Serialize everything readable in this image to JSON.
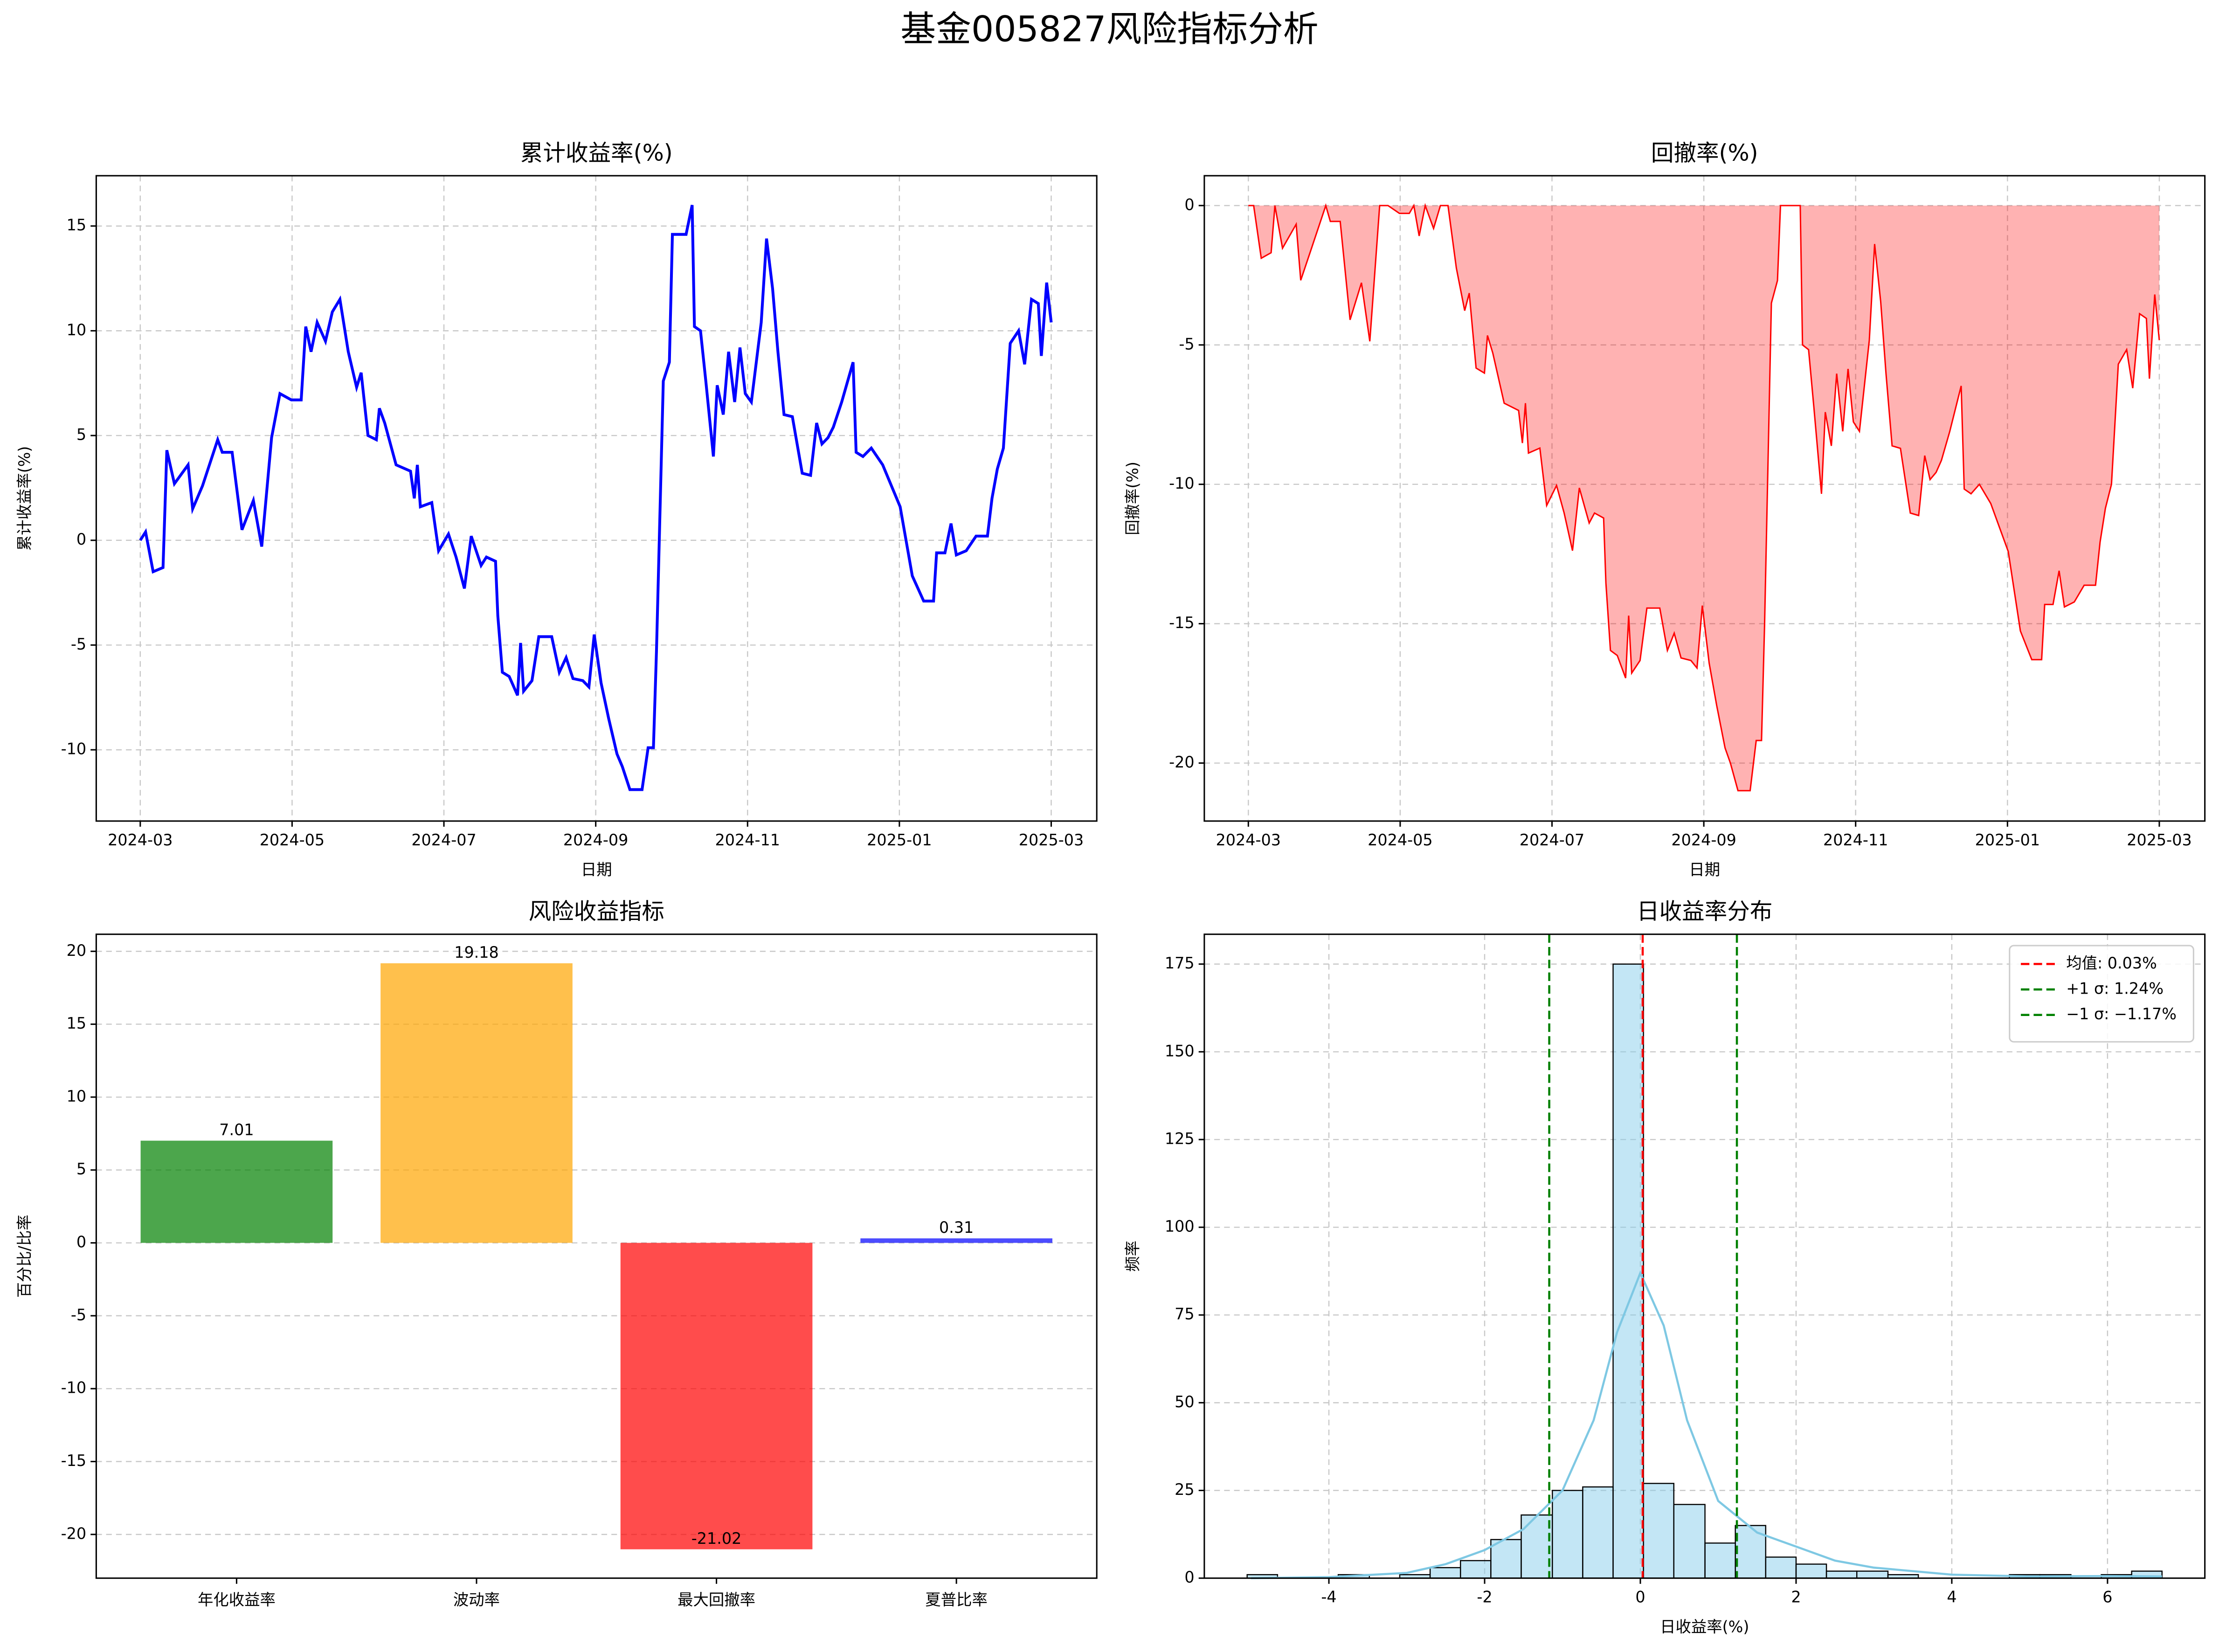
{
  "title": "基金005827风险指标分析",
  "chart_data": [
    {
      "type": "line",
      "title": "累计收益率(%)",
      "xlabel": "日期",
      "ylabel": "累计收益率(%)",
      "color": "blue",
      "grid": "both",
      "xlim": [
        -0.58,
        12.6
      ],
      "xticks": [
        {
          "value": 0,
          "label": "2024-03"
        },
        {
          "value": 2,
          "label": "2024-05"
        },
        {
          "value": 4,
          "label": "2024-07"
        },
        {
          "value": 6,
          "label": "2024-09"
        },
        {
          "value": 8,
          "label": "2024-11"
        },
        {
          "value": 10,
          "label": "2025-01"
        },
        {
          "value": 12,
          "label": "2025-03"
        }
      ],
      "ylim": [
        -13.4,
        17.4
      ],
      "yticks": [
        -10,
        -5,
        0,
        5,
        10,
        15
      ],
      "x": [
        0,
        0.07,
        0.17,
        0.3,
        0.35,
        0.45,
        0.63,
        0.69,
        0.82,
        1.02,
        1.08,
        1.21,
        1.34,
        1.49,
        1.6,
        1.73,
        1.84,
        1.99,
        2.12,
        2.18,
        2.25,
        2.33,
        2.44,
        2.53,
        2.63,
        2.74,
        2.85,
        2.91,
        3.0,
        3.11,
        3.15,
        3.22,
        3.37,
        3.56,
        3.61,
        3.65,
        3.69,
        3.84,
        3.93,
        4.06,
        4.16,
        4.27,
        4.36,
        4.49,
        4.56,
        4.68,
        4.71,
        4.77,
        4.86,
        4.97,
        5.01,
        5.05,
        5.16,
        5.25,
        5.42,
        5.52,
        5.61,
        5.7,
        5.83,
        5.91,
        5.98,
        6.07,
        6.17,
        6.28,
        6.35,
        6.45,
        6.61,
        6.69,
        6.76,
        6.8,
        6.89,
        6.97,
        7.01,
        7.19,
        7.27,
        7.3,
        7.38,
        7.45,
        7.55,
        7.6,
        7.68,
        7.75,
        7.83,
        7.9,
        7.97,
        8.05,
        8.18,
        8.25,
        8.33,
        8.4,
        8.48,
        8.59,
        8.72,
        8.83,
        8.91,
        8.98,
        9.06,
        9.13,
        9.24,
        9.39,
        9.43,
        9.52,
        9.63,
        9.78,
        10.01,
        10.17,
        10.32,
        10.45,
        10.49,
        10.6,
        10.68,
        10.75,
        10.88,
        11.01,
        11.16,
        11.22,
        11.29,
        11.37,
        11.46,
        11.57,
        11.65,
        11.74,
        11.83,
        11.87,
        11.94,
        12.0
      ],
      "values": [
        0,
        0.4,
        -1.5,
        -1.3,
        4.3,
        2.7,
        3.6,
        1.5,
        2.6,
        4.8,
        4.2,
        4.2,
        0.5,
        1.9,
        -0.3,
        4.9,
        7.0,
        6.7,
        6.7,
        10.2,
        9.0,
        10.4,
        9.5,
        10.9,
        11.5,
        9.0,
        7.3,
        8.0,
        5.0,
        4.8,
        6.3,
        5.6,
        3.6,
        3.3,
        2.0,
        3.6,
        1.6,
        1.8,
        -0.5,
        0.3,
        -0.8,
        -2.3,
        0.2,
        -1.2,
        -0.8,
        -1.0,
        -3.6,
        -6.3,
        -6.5,
        -7.4,
        -4.9,
        -7.2,
        -6.7,
        -4.6,
        -4.6,
        -6.3,
        -5.6,
        -6.6,
        -6.7,
        -7.0,
        -4.5,
        -6.8,
        -8.5,
        -10.2,
        -10.8,
        -11.9,
        -11.9,
        -9.9,
        -9.9,
        -5.3,
        7.6,
        8.5,
        14.6,
        14.6,
        16.0,
        10.2,
        10.0,
        7.6,
        4.0,
        7.4,
        6.0,
        9.0,
        6.6,
        9.2,
        7.0,
        6.6,
        10.4,
        14.4,
        12.0,
        9.0,
        6.0,
        5.9,
        3.2,
        3.1,
        5.6,
        4.6,
        4.9,
        5.4,
        6.6,
        8.5,
        4.2,
        4.0,
        4.4,
        3.6,
        1.6,
        -1.7,
        -2.9,
        -2.9,
        -0.6,
        -0.6,
        0.8,
        -0.7,
        -0.5,
        0.2,
        0.2,
        2.0,
        3.4,
        4.4,
        9.4,
        10.0,
        8.4,
        11.5,
        11.3,
        8.8,
        12.3,
        10.4
      ]
    },
    {
      "type": "area",
      "title": "回撤率(%)",
      "xlabel": "日期",
      "ylabel": "回撤率(%)",
      "color": "red",
      "fill_alpha": 0.3,
      "grid": "both",
      "xlim": [
        -0.58,
        12.6
      ],
      "xticks": [
        {
          "value": 0,
          "label": "2024-03"
        },
        {
          "value": 2,
          "label": "2024-05"
        },
        {
          "value": 4,
          "label": "2024-07"
        },
        {
          "value": 6,
          "label": "2024-09"
        },
        {
          "value": 8,
          "label": "2024-11"
        },
        {
          "value": 10,
          "label": "2025-01"
        },
        {
          "value": 12,
          "label": "2025-03"
        }
      ],
      "ylim": [
        -22.08,
        1.07
      ],
      "yticks": [
        -20,
        -15,
        -10,
        -5,
        0
      ],
      "x": [
        0,
        0.07,
        0.17,
        0.3,
        0.35,
        0.45,
        0.63,
        0.69,
        0.82,
        1.02,
        1.08,
        1.21,
        1.34,
        1.49,
        1.6,
        1.73,
        1.84,
        1.99,
        2.12,
        2.18,
        2.25,
        2.33,
        2.44,
        2.53,
        2.63,
        2.74,
        2.85,
        2.91,
        3.0,
        3.11,
        3.15,
        3.22,
        3.37,
        3.56,
        3.61,
        3.65,
        3.69,
        3.84,
        3.93,
        4.06,
        4.16,
        4.27,
        4.36,
        4.49,
        4.56,
        4.68,
        4.71,
        4.77,
        4.86,
        4.97,
        5.01,
        5.05,
        5.16,
        5.25,
        5.42,
        5.52,
        5.61,
        5.7,
        5.83,
        5.91,
        5.98,
        6.07,
        6.17,
        6.28,
        6.35,
        6.45,
        6.61,
        6.69,
        6.76,
        6.8,
        6.89,
        6.97,
        7.01,
        7.19,
        7.27,
        7.3,
        7.38,
        7.45,
        7.55,
        7.6,
        7.68,
        7.75,
        7.83,
        7.9,
        7.97,
        8.05,
        8.18,
        8.25,
        8.33,
        8.4,
        8.48,
        8.59,
        8.72,
        8.83,
        8.91,
        8.98,
        9.06,
        9.13,
        9.24,
        9.39,
        9.43,
        9.52,
        9.63,
        9.78,
        10.01,
        10.17,
        10.32,
        10.45,
        10.49,
        10.6,
        10.68,
        10.75,
        10.88,
        11.01,
        11.16,
        11.22,
        11.29,
        11.37,
        11.46,
        11.57,
        11.65,
        11.74,
        11.83,
        11.87,
        11.94,
        12.0
      ],
      "values": [
        0,
        0,
        -1.89,
        -1.69,
        0,
        -1.53,
        -0.67,
        -2.68,
        -1.63,
        0,
        -0.57,
        -0.57,
        -4.1,
        -2.77,
        -4.87,
        0,
        0,
        -0.28,
        -0.28,
        0,
        -1.09,
        0,
        -0.82,
        0,
        0,
        -2.24,
        -3.77,
        -3.14,
        -5.83,
        -6.01,
        -4.66,
        -5.29,
        -7.09,
        -7.35,
        -8.52,
        -7.09,
        -8.88,
        -8.7,
        -10.76,
        -10.04,
        -11.03,
        -12.38,
        -10.13,
        -11.39,
        -11.03,
        -11.21,
        -13.54,
        -15.96,
        -16.14,
        -16.95,
        -14.71,
        -16.77,
        -16.32,
        -14.44,
        -14.44,
        -15.96,
        -15.34,
        -16.23,
        -16.32,
        -16.59,
        -14.35,
        -16.41,
        -17.94,
        -19.46,
        -20.0,
        -20.99,
        -20.99,
        -19.19,
        -19.19,
        -15.07,
        -3.5,
        -2.69,
        0,
        0,
        0,
        -5.0,
        -5.17,
        -7.24,
        -10.34,
        -7.41,
        -8.62,
        -6.03,
        -8.1,
        -5.86,
        -7.76,
        -8.1,
        -4.83,
        -1.38,
        -3.45,
        -6.03,
        -8.62,
        -8.71,
        -11.03,
        -11.12,
        -8.97,
        -9.83,
        -9.57,
        -9.14,
        -8.1,
        -6.47,
        -10.17,
        -10.34,
        -10.0,
        -10.69,
        -12.41,
        -15.26,
        -16.29,
        -16.29,
        -14.31,
        -14.31,
        -13.1,
        -14.4,
        -14.22,
        -13.62,
        -13.62,
        -12.07,
        -10.86,
        -10.0,
        -5.69,
        -5.17,
        -6.55,
        -3.88,
        -4.05,
        -6.21,
        -3.19,
        -4.83
      ]
    },
    {
      "type": "bar",
      "title": "风险收益指标",
      "ylabel": "百分比/比率",
      "grid": "y",
      "categories": [
        "年化收益率",
        "波动率",
        "最大回撤率",
        "夏普比率"
      ],
      "values": [
        7.01,
        19.18,
        -21.02,
        0.31
      ],
      "colors": [
        "green",
        "orange",
        "red",
        "blue"
      ],
      "alpha": 0.7,
      "ylim": [
        -23,
        21.17
      ],
      "yticks": [
        -20,
        -15,
        -10,
        -5,
        0,
        5,
        10,
        15,
        20
      ]
    },
    {
      "type": "histogram",
      "title": "日收益率分布",
      "xlabel": "日收益率(%)",
      "ylabel": "频率",
      "grid": "both",
      "color": "skyblue",
      "alpha": 0.5,
      "edgecolor": "black",
      "bins": [
        -5.05,
        -4.66,
        -4.27,
        -3.88,
        -3.48,
        -3.09,
        -2.7,
        -2.31,
        -1.92,
        -1.53,
        -1.13,
        -0.74,
        -0.35,
        0.04,
        0.43,
        0.83,
        1.22,
        1.61,
        2.0,
        2.39,
        2.78,
        3.18,
        3.57,
        3.96,
        4.35,
        4.74,
        5.13,
        5.53,
        5.92,
        6.31,
        6.7
      ],
      "values": [
        1,
        0,
        0,
        1,
        0,
        1,
        3,
        5,
        11,
        18,
        25,
        26,
        175,
        27,
        21,
        10,
        15,
        6,
        4,
        2,
        2,
        1,
        0,
        0,
        0,
        1,
        1,
        0,
        1,
        2
      ],
      "curve": {
        "color": "#7ec8e3",
        "x": [
          -5,
          -4,
          -3,
          -2.5,
          -2,
          -1.5,
          -1,
          -0.6,
          -0.3,
          0,
          0.3,
          0.6,
          1,
          1.5,
          2,
          2.5,
          3,
          4,
          5,
          6,
          6.7
        ],
        "values": [
          0,
          0.3,
          1.5,
          4,
          8,
          14,
          25,
          45,
          70,
          87,
          72,
          45,
          22,
          13,
          9,
          5,
          3,
          1,
          0.5,
          0.6,
          0.5
        ]
      },
      "lines": [
        {
          "name": "均值: 0.03%",
          "value": 0.03,
          "color": "red"
        },
        {
          "name": "+1 σ: 1.24%",
          "value": 1.24,
          "color": "green"
        },
        {
          "name": "−1 σ: −1.17%",
          "value": -1.17,
          "color": "green"
        }
      ],
      "legend": "upper right",
      "xlim": [
        -5.6,
        7.25
      ],
      "xticks": [
        -4,
        -2,
        0,
        2,
        4,
        6
      ],
      "ylim": [
        0,
        183.5
      ],
      "yticks": [
        0,
        25,
        50,
        75,
        100,
        125,
        150,
        175
      ]
    }
  ]
}
